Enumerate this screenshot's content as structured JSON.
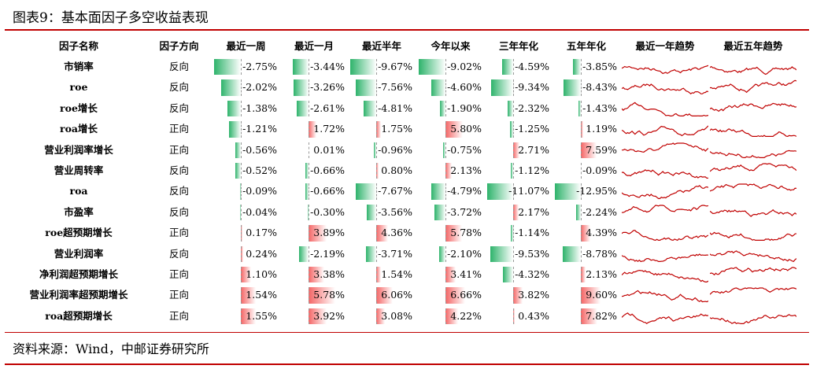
{
  "title": "图表9：基本面因子多空收益表现",
  "table": {
    "headers": [
      "因子名称",
      "因子方向",
      "最近一周",
      "最近一月",
      "最近半年",
      "今年以来",
      "三年年化",
      "五年年化",
      "最近一年趋势",
      "最近五年趋势"
    ],
    "rows": [
      {
        "name": "市销率",
        "direction": "反向",
        "values": [
          -2.75,
          -3.44,
          -9.67,
          -9.02,
          -4.59,
          -3.85
        ],
        "value_labels": [
          "-2.75%",
          "-3.44%",
          "-9.67%",
          "-9.02%",
          "-4.59%",
          "-3.85%"
        ]
      },
      {
        "name": "roe",
        "direction": "反向",
        "values": [
          -2.02,
          -3.26,
          -7.56,
          -4.6,
          -9.34,
          -8.43
        ],
        "value_labels": [
          "-2.02%",
          "-3.26%",
          "-7.56%",
          "-4.60%",
          "-9.34%",
          "-8.43%"
        ]
      },
      {
        "name": "roe增长",
        "direction": "反向",
        "values": [
          -1.38,
          -2.61,
          -4.81,
          -1.9,
          -2.32,
          -1.43
        ],
        "value_labels": [
          "-1.38%",
          "-2.61%",
          "-4.81%",
          "-1.90%",
          "-2.32%",
          "-1.43%"
        ]
      },
      {
        "name": "roa增长",
        "direction": "正向",
        "values": [
          -1.21,
          1.72,
          1.75,
          5.8,
          -1.25,
          1.19
        ],
        "value_labels": [
          "-1.21%",
          "1.72%",
          "1.75%",
          "5.80%",
          "-1.25%",
          "1.19%"
        ]
      },
      {
        "name": "营业利润率增长",
        "direction": "正向",
        "values": [
          -0.56,
          0.01,
          -0.96,
          -0.75,
          2.71,
          7.59
        ],
        "value_labels": [
          "-0.56%",
          "0.01%",
          "-0.96%",
          "-0.75%",
          "2.71%",
          "7.59%"
        ]
      },
      {
        "name": "营业周转率",
        "direction": "反向",
        "values": [
          -0.52,
          -0.66,
          0.8,
          2.13,
          -1.12,
          -0.09
        ],
        "value_labels": [
          "-0.52%",
          "-0.66%",
          "0.80%",
          "2.13%",
          "-1.12%",
          "-0.09%"
        ]
      },
      {
        "name": "roa",
        "direction": "反向",
        "values": [
          -0.09,
          -0.66,
          -7.67,
          -4.79,
          -11.07,
          -12.95
        ],
        "value_labels": [
          "-0.09%",
          "-0.66%",
          "-7.67%",
          "-4.79%",
          "-11.07%",
          "-12.95%"
        ]
      },
      {
        "name": "市盈率",
        "direction": "反向",
        "values": [
          -0.04,
          -0.3,
          -3.56,
          -3.72,
          2.17,
          -2.24
        ],
        "value_labels": [
          "-0.04%",
          "-0.30%",
          "-3.56%",
          "-3.72%",
          "2.17%",
          "-2.24%"
        ]
      },
      {
        "name": "roe超预期增长",
        "direction": "正向",
        "values": [
          0.17,
          3.89,
          4.36,
          5.78,
          -1.14,
          4.39
        ],
        "value_labels": [
          "0.17%",
          "3.89%",
          "4.36%",
          "5.78%",
          "-1.14%",
          "4.39%"
        ]
      },
      {
        "name": "营业利润率",
        "direction": "反向",
        "values": [
          0.24,
          -2.19,
          -3.71,
          -2.1,
          -9.53,
          -8.78
        ],
        "value_labels": [
          "0.24%",
          "-2.19%",
          "-3.71%",
          "-2.10%",
          "-9.53%",
          "-8.78%"
        ]
      },
      {
        "name": "净利润超预期增长",
        "direction": "正向",
        "values": [
          1.1,
          3.38,
          1.54,
          3.41,
          -4.32,
          2.13
        ],
        "value_labels": [
          "1.10%",
          "3.38%",
          "1.54%",
          "3.41%",
          "-4.32%",
          "2.13%"
        ]
      },
      {
        "name": "营业利润率超预期增长",
        "direction": "正向",
        "values": [
          1.54,
          5.78,
          6.06,
          6.66,
          3.82,
          9.6
        ],
        "value_labels": [
          "1.54%",
          "5.78%",
          "6.06%",
          "6.66%",
          "3.82%",
          "9.60%"
        ]
      },
      {
        "name": "roa超预期增长",
        "direction": "正向",
        "values": [
          1.55,
          3.92,
          3.08,
          4.22,
          0.43,
          7.82
        ],
        "value_labels": [
          "1.55%",
          "3.92%",
          "3.08%",
          "4.22%",
          "0.43%",
          "7.82%"
        ]
      }
    ]
  },
  "source": "资料来源：Wind，中邮证券研究所"
}
